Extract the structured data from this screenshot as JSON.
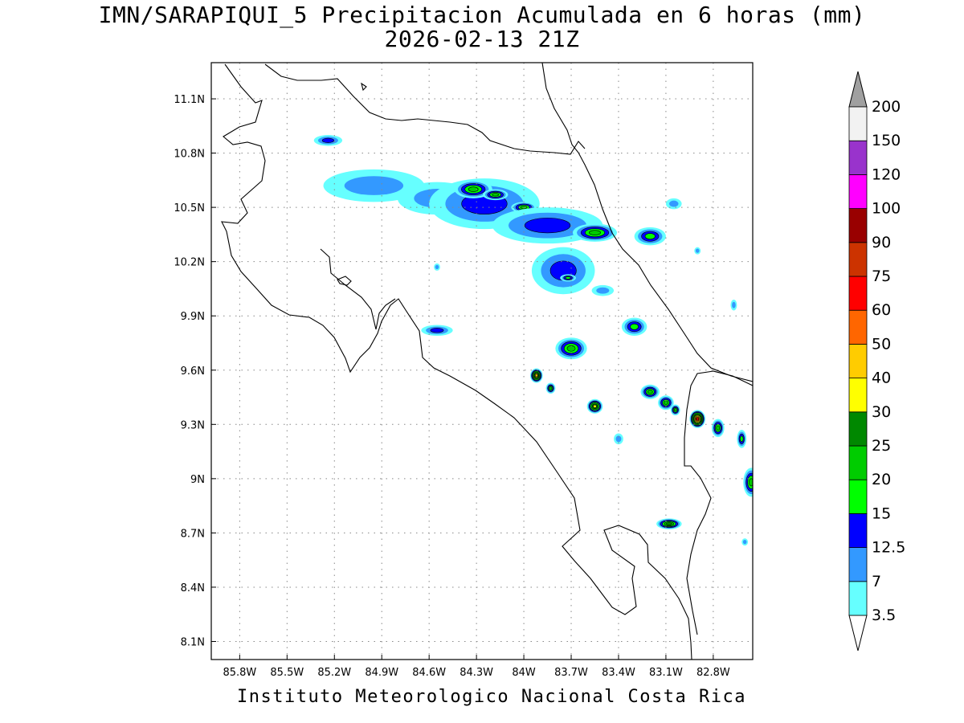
{
  "map": {
    "title_line1": "IMN/SARAPIQUI_5 Precipitacion Acumulada en 6 horas (mm)",
    "title_line2": "2026-02-13 21Z",
    "credit": "Instituto Meteorologico Nacional Costa Rica",
    "region": "Costa Rica",
    "lon_range": [
      -85.98,
      -82.55
    ],
    "lat_range": [
      8.0,
      11.3
    ],
    "lon_ticks": [
      {
        "value": -85.8,
        "label": "85.8W"
      },
      {
        "value": -85.5,
        "label": "85.5W"
      },
      {
        "value": -85.2,
        "label": "85.2W"
      },
      {
        "value": -84.9,
        "label": "84.9W"
      },
      {
        "value": -84.6,
        "label": "84.6W"
      },
      {
        "value": -84.3,
        "label": "84.3W"
      },
      {
        "value": -84.0,
        "label": "84W"
      },
      {
        "value": -83.7,
        "label": "83.7W"
      },
      {
        "value": -83.4,
        "label": "83.4W"
      },
      {
        "value": -83.1,
        "label": "83.1W"
      },
      {
        "value": -82.8,
        "label": "82.8W"
      }
    ],
    "lat_ticks": [
      {
        "value": 11.1,
        "label": "11.1N"
      },
      {
        "value": 10.8,
        "label": "10.8N"
      },
      {
        "value": 10.5,
        "label": "10.5N"
      },
      {
        "value": 10.2,
        "label": "10.2N"
      },
      {
        "value": 9.9,
        "label": "9.9N"
      },
      {
        "value": 9.6,
        "label": "9.6N"
      },
      {
        "value": 9.3,
        "label": "9.3N"
      },
      {
        "value": 9.0,
        "label": "9N"
      },
      {
        "value": 8.7,
        "label": "8.7N"
      },
      {
        "value": 8.4,
        "label": "8.4N"
      },
      {
        "value": 8.1,
        "label": "8.1N"
      }
    ],
    "grid": true
  },
  "legend": {
    "overflow_color": "#a0a0a0",
    "underflow_color": "#ffffff",
    "bins": [
      {
        "label": "3.5",
        "color": "#66ffff"
      },
      {
        "label": "7",
        "color": "#3399ff"
      },
      {
        "label": "12.5",
        "color": "#0000ff"
      },
      {
        "label": "15",
        "color": "#00ff00"
      },
      {
        "label": "20",
        "color": "#00cc00"
      },
      {
        "label": "25",
        "color": "#008800"
      },
      {
        "label": "30",
        "color": "#ffff00"
      },
      {
        "label": "40",
        "color": "#ffcc00"
      },
      {
        "label": "50",
        "color": "#ff6600"
      },
      {
        "label": "60",
        "color": "#ff0000"
      },
      {
        "label": "75",
        "color": "#cc3300"
      },
      {
        "label": "90",
        "color": "#990000"
      },
      {
        "label": "100",
        "color": "#ff00ff"
      },
      {
        "label": "120",
        "color": "#9933cc"
      },
      {
        "label": "150",
        "color": "#f2f2f2"
      },
      {
        "label": "200",
        "color": ""
      }
    ]
  },
  "rain_cells": [
    {
      "lon": -85.24,
      "lat": 10.87,
      "rlon": 0.09,
      "rlat": 0.03,
      "level": 2
    },
    {
      "lon": -84.95,
      "lat": 10.62,
      "rlon": 0.32,
      "rlat": 0.09,
      "level": 1
    },
    {
      "lon": -84.55,
      "lat": 10.55,
      "rlon": 0.25,
      "rlat": 0.09,
      "level": 1
    },
    {
      "lon": -84.25,
      "lat": 10.52,
      "rlon": 0.35,
      "rlat": 0.14,
      "level": 2
    },
    {
      "lon": -84.32,
      "lat": 10.6,
      "rlon": 0.12,
      "rlat": 0.05,
      "level": 4
    },
    {
      "lon": -84.18,
      "lat": 10.57,
      "rlon": 0.08,
      "rlat": 0.03,
      "level": 4
    },
    {
      "lon": -84.0,
      "lat": 10.5,
      "rlon": 0.08,
      "rlat": 0.03,
      "level": 4
    },
    {
      "lon": -83.85,
      "lat": 10.4,
      "rlon": 0.35,
      "rlat": 0.1,
      "level": 2
    },
    {
      "lon": -83.55,
      "lat": 10.36,
      "rlon": 0.14,
      "rlat": 0.05,
      "level": 4
    },
    {
      "lon": -83.2,
      "lat": 10.34,
      "rlon": 0.1,
      "rlat": 0.05,
      "level": 3
    },
    {
      "lon": -83.75,
      "lat": 10.15,
      "rlon": 0.2,
      "rlat": 0.13,
      "level": 2
    },
    {
      "lon": -83.72,
      "lat": 10.11,
      "rlon": 0.05,
      "rlat": 0.02,
      "level": 3
    },
    {
      "lon": -83.5,
      "lat": 10.04,
      "rlon": 0.07,
      "rlat": 0.03,
      "level": 1
    },
    {
      "lon": -84.55,
      "lat": 9.82,
      "rlon": 0.1,
      "rlat": 0.03,
      "level": 2
    },
    {
      "lon": -83.7,
      "lat": 9.72,
      "rlon": 0.1,
      "rlat": 0.06,
      "level": 4
    },
    {
      "lon": -83.3,
      "lat": 9.84,
      "rlon": 0.08,
      "rlat": 0.05,
      "level": 3
    },
    {
      "lon": -83.92,
      "lat": 9.57,
      "rlon": 0.04,
      "rlat": 0.04,
      "level": 7
    },
    {
      "lon": -83.83,
      "lat": 9.5,
      "rlon": 0.03,
      "rlat": 0.03,
      "level": 4
    },
    {
      "lon": -83.55,
      "lat": 9.4,
      "rlon": 0.05,
      "rlat": 0.04,
      "level": 6
    },
    {
      "lon": -83.2,
      "lat": 9.48,
      "rlon": 0.06,
      "rlat": 0.04,
      "level": 4
    },
    {
      "lon": -83.1,
      "lat": 9.42,
      "rlon": 0.05,
      "rlat": 0.04,
      "level": 4
    },
    {
      "lon": -83.04,
      "lat": 9.38,
      "rlon": 0.03,
      "rlat": 0.03,
      "level": 4
    },
    {
      "lon": -82.9,
      "lat": 9.33,
      "rlon": 0.05,
      "rlat": 0.05,
      "level": 9
    },
    {
      "lon": -82.77,
      "lat": 9.28,
      "rlon": 0.04,
      "rlat": 0.05,
      "level": 4
    },
    {
      "lon": -82.62,
      "lat": 9.22,
      "rlon": 0.03,
      "rlat": 0.05,
      "level": 3
    },
    {
      "lon": -82.56,
      "lat": 8.98,
      "rlon": 0.05,
      "rlat": 0.08,
      "level": 4
    },
    {
      "lon": -83.08,
      "lat": 8.75,
      "rlon": 0.08,
      "rlat": 0.03,
      "level": 5
    },
    {
      "lon": -82.6,
      "lat": 8.65,
      "rlon": 0.02,
      "rlat": 0.02,
      "level": 1
    },
    {
      "lon": -83.4,
      "lat": 9.22,
      "rlon": 0.03,
      "rlat": 0.03,
      "level": 1
    },
    {
      "lon": -84.55,
      "lat": 10.17,
      "rlon": 0.02,
      "rlat": 0.02,
      "level": 1
    },
    {
      "lon": -82.9,
      "lat": 10.26,
      "rlon": 0.02,
      "rlat": 0.02,
      "level": 1
    },
    {
      "lon": -82.67,
      "lat": 9.96,
      "rlon": 0.02,
      "rlat": 0.03,
      "level": 1
    },
    {
      "lon": -83.05,
      "lat": 10.52,
      "rlon": 0.05,
      "rlat": 0.03,
      "level": 1
    }
  ]
}
